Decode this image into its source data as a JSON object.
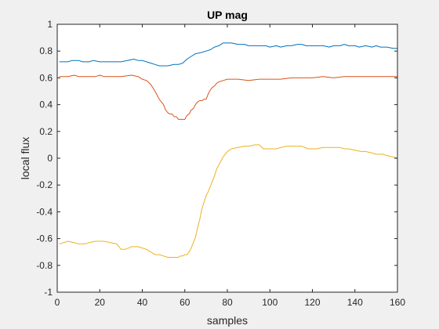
{
  "chart_data": {
    "type": "line",
    "title": "UP mag",
    "xlabel": "samples",
    "ylabel": "local flux",
    "xlim": [
      0,
      160
    ],
    "ylim": [
      -1,
      1
    ],
    "xticks": [
      0,
      20,
      40,
      60,
      80,
      100,
      120,
      140,
      160
    ],
    "yticks": [
      -1,
      -0.8,
      -0.6,
      -0.4,
      -0.2,
      0,
      0.2,
      0.4,
      0.6,
      0.8,
      1
    ],
    "grid": false,
    "legend": "none",
    "series": [
      {
        "color": "#0072BD",
        "x": [
          1,
          5,
          7,
          10,
          12,
          15,
          17,
          20,
          25,
          30,
          33,
          36,
          38,
          40,
          42,
          44,
          46,
          48,
          50,
          52,
          55,
          57,
          59,
          61,
          63,
          65,
          68,
          70,
          72,
          74,
          76,
          78,
          80,
          82,
          85,
          88,
          90,
          93,
          95,
          98,
          100,
          103,
          105,
          108,
          110,
          113,
          115,
          117,
          120,
          123,
          125,
          128,
          130,
          133,
          135,
          137,
          140,
          142,
          145,
          148,
          150,
          152,
          155,
          158,
          160
        ],
        "values": [
          0.72,
          0.72,
          0.73,
          0.73,
          0.72,
          0.72,
          0.73,
          0.72,
          0.72,
          0.72,
          0.73,
          0.74,
          0.73,
          0.73,
          0.72,
          0.71,
          0.7,
          0.69,
          0.69,
          0.69,
          0.7,
          0.7,
          0.71,
          0.74,
          0.76,
          0.78,
          0.79,
          0.8,
          0.81,
          0.83,
          0.84,
          0.86,
          0.86,
          0.86,
          0.85,
          0.85,
          0.84,
          0.84,
          0.84,
          0.84,
          0.83,
          0.84,
          0.83,
          0.84,
          0.84,
          0.85,
          0.85,
          0.84,
          0.84,
          0.84,
          0.84,
          0.83,
          0.84,
          0.84,
          0.85,
          0.84,
          0.84,
          0.83,
          0.84,
          0.83,
          0.84,
          0.83,
          0.83,
          0.82,
          0.82
        ]
      },
      {
        "color": "#D95319",
        "x": [
          1,
          5,
          8,
          10,
          15,
          18,
          20,
          22,
          25,
          30,
          35,
          38,
          40,
          42,
          44,
          46,
          47,
          48,
          49,
          50,
          51,
          52,
          53,
          54,
          55,
          56,
          57,
          58,
          59,
          60,
          61,
          62,
          63,
          64,
          65,
          66,
          67,
          68,
          69,
          70,
          71,
          72,
          73,
          74,
          75,
          76,
          78,
          80,
          85,
          90,
          95,
          100,
          105,
          110,
          115,
          120,
          125,
          130,
          135,
          140,
          145,
          150,
          155,
          160
        ],
        "values": [
          0.61,
          0.61,
          0.62,
          0.61,
          0.61,
          0.61,
          0.62,
          0.61,
          0.61,
          0.61,
          0.62,
          0.61,
          0.59,
          0.58,
          0.55,
          0.5,
          0.47,
          0.44,
          0.42,
          0.4,
          0.36,
          0.34,
          0.33,
          0.33,
          0.31,
          0.31,
          0.29,
          0.29,
          0.29,
          0.29,
          0.32,
          0.33,
          0.36,
          0.37,
          0.4,
          0.42,
          0.43,
          0.43,
          0.44,
          0.44,
          0.48,
          0.51,
          0.53,
          0.54,
          0.56,
          0.57,
          0.58,
          0.59,
          0.59,
          0.58,
          0.59,
          0.59,
          0.59,
          0.6,
          0.6,
          0.6,
          0.61,
          0.6,
          0.61,
          0.61,
          0.61,
          0.61,
          0.61,
          0.61
        ]
      },
      {
        "color": "#EDB120",
        "x": [
          1,
          3,
          5,
          8,
          10,
          13,
          15,
          18,
          20,
          22,
          25,
          28,
          30,
          32,
          35,
          38,
          40,
          42,
          44,
          46,
          48,
          50,
          52,
          55,
          57,
          58,
          59,
          60,
          61,
          62,
          63,
          64,
          65,
          66,
          67,
          68,
          69,
          70,
          71,
          72,
          73,
          74,
          75,
          76,
          77,
          78,
          79,
          80,
          82,
          85,
          88,
          90,
          93,
          95,
          97,
          100,
          103,
          105,
          108,
          110,
          112,
          115,
          118,
          120,
          122,
          125,
          128,
          130,
          133,
          135,
          137,
          140,
          143,
          145,
          148,
          150,
          153,
          155,
          158,
          160
        ],
        "values": [
          -0.64,
          -0.63,
          -0.62,
          -0.63,
          -0.64,
          -0.64,
          -0.63,
          -0.62,
          -0.62,
          -0.62,
          -0.63,
          -0.64,
          -0.68,
          -0.68,
          -0.66,
          -0.66,
          -0.67,
          -0.68,
          -0.7,
          -0.72,
          -0.72,
          -0.73,
          -0.74,
          -0.74,
          -0.74,
          -0.73,
          -0.73,
          -0.72,
          -0.72,
          -0.7,
          -0.67,
          -0.63,
          -0.59,
          -0.52,
          -0.46,
          -0.38,
          -0.33,
          -0.28,
          -0.25,
          -0.21,
          -0.17,
          -0.13,
          -0.08,
          -0.05,
          -0.02,
          0.01,
          0.03,
          0.05,
          0.07,
          0.08,
          0.09,
          0.09,
          0.1,
          0.1,
          0.07,
          0.07,
          0.07,
          0.08,
          0.09,
          0.09,
          0.09,
          0.09,
          0.07,
          0.07,
          0.07,
          0.08,
          0.08,
          0.08,
          0.08,
          0.07,
          0.07,
          0.06,
          0.05,
          0.05,
          0.04,
          0.03,
          0.03,
          0.02,
          0.01,
          0.0
        ]
      }
    ]
  }
}
